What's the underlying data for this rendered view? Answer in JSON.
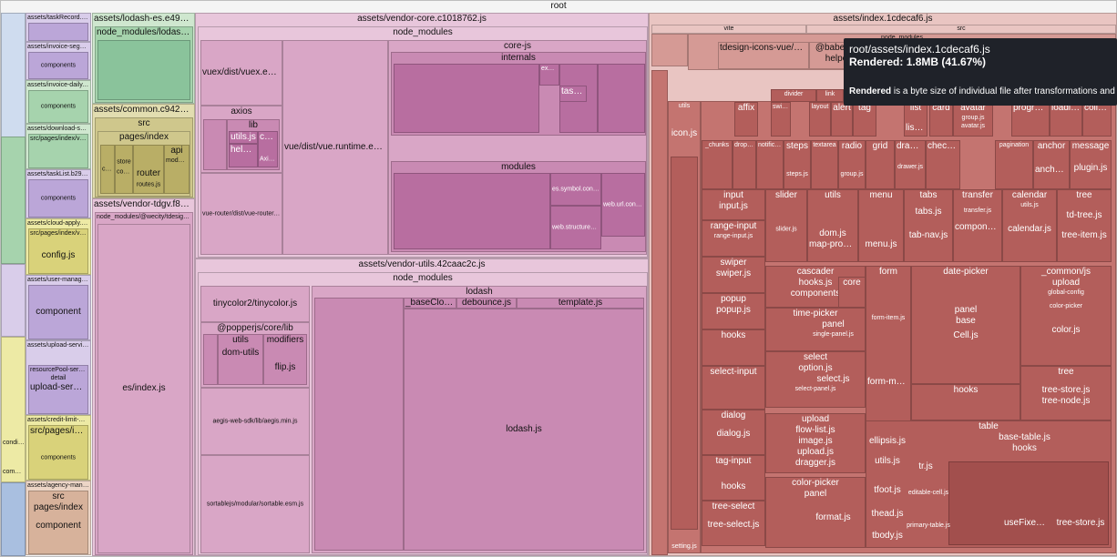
{
  "root": {
    "label": "root"
  },
  "left_sidebar": {
    "col1": [
      "assets/taskRecord.eb09e53f.js",
      "assets/invoice-segment.def9739a.js",
      "components",
      "assets/invoice-daily.6b5a3ed0.js",
      "components",
      "assets/download-service.09be817c.js",
      "src/pages/index/views",
      "assets/taskList.b299abed.js",
      "components",
      "assets/cloud-apply.acfef62d.js",
      "src/pages/index/views/cloud-apply",
      "config.js",
      "assets/user-manage.d629e7.js",
      "component",
      "assets/upload-service.7a613962.js",
      "resourcePool-service",
      "detail",
      "upload-service",
      "assets/credit-limit-manage.e8187e7.js",
      "src/pages/index",
      "components",
      "assets/agency-manage.09be951f.js",
      "src",
      "pages/index",
      "component",
      "condition.js",
      "components"
    ]
  },
  "lodash_es": {
    "title": "assets/lodash-es.e492349e.js",
    "sub": "node_modules/lodash-es"
  },
  "common": {
    "title": "assets/common.c942e9b4.js",
    "src": "src",
    "pages": "pages/index",
    "core": "core",
    "store": "store",
    "config": "config",
    "api": "api",
    "modules": "modules",
    "router": "router",
    "routes": "routes.js"
  },
  "vendor_tdgv": {
    "title": "assets/vendor-tdgv.f8baf6bb.js",
    "sub": "node_modules/@wecity/tdesign-gov-vue",
    "es": "es/index.js"
  },
  "vendor_core": {
    "title": "assets/vendor-core.c1018762.js",
    "node_modules": "node_modules",
    "vuex": "vuex/dist/vuex.esm.js",
    "axios": "axios",
    "lib": "lib",
    "utils_js": "utils.js",
    "core": "core",
    "helpers": "helpers",
    "axios_js": "Axios.js",
    "vue_runtime": "vue/dist/vue.runtime.esm.js",
    "vue_router": "vue-router/dist/vue-router.esm.js",
    "core_js": "core-js",
    "internals": "internals",
    "export_js": "export.js",
    "task_js": "task.js",
    "modules": "modules",
    "es_symbol": "es.symbol.constructor.js",
    "web_url": "web.url.constructor.js",
    "web_structured": "web.structured-clone.js"
  },
  "vendor_utils": {
    "title": "assets/vendor-utils.42caac2c.js",
    "node_modules": "node_modules",
    "tinycolor": "tinycolor2/tinycolor.js",
    "popper": "@popperjs/core/lib",
    "utils": "utils",
    "modifiers": "modifiers",
    "dom_utils": "dom-utils",
    "flip": "flip.js",
    "aegis": "aegis-web-sdk/lib/aegis.min.js",
    "sortable": "sortablejs/modular/sortable.esm.js",
    "lodash": "lodash",
    "baseClone": "_baseClone.js",
    "debounce": "debounce.js",
    "template": "template.js",
    "lodash_js": "lodash.js"
  },
  "index": {
    "title": "assets/index.1cdecaf6.js",
    "vite": "vite",
    "src": "src",
    "node_modules": "node_modules",
    "tdesign_icons": "tdesign-icons-vue/esm",
    "babel": "@babel/ru",
    "helpers": "helpe",
    "icon_js": "icon.js",
    "utils": "utils",
    "cells": [
      [
        "affix",
        "switch",
        "layout",
        "alert",
        "tag",
        "list",
        "card",
        "avatar",
        "progress",
        "loading",
        "collapse"
      ],
      [
        "dropdown",
        "notification",
        "steps",
        "textarea",
        "radio",
        "grid",
        "drawer",
        "checkbox",
        "pagination",
        "anchor",
        "message"
      ]
    ],
    "labels": {
      "divider": "divider",
      "link": "link",
      "list_js": "list.js",
      "group_js": "group.js",
      "avatar_js": "avatar.js",
      "chunks": "_chunks",
      "steps_js": "steps.js",
      "group2_js": "group.js",
      "drawer_js": "drawer.js",
      "plugin_js": "plugin.js",
      "anchor_js": "anchor.js",
      "input": "input",
      "input_js": "input.js",
      "slider": "slider",
      "slider_js": "slider.js",
      "utils": "utils",
      "dom_js": "dom.js",
      "map_props": "map-props.js",
      "menu": "menu",
      "menu_js": "menu.js",
      "tabs": "tabs",
      "tabs_js": "tabs.js",
      "tab_nav": "tab-nav.js",
      "transfer": "transfer",
      "transfer_js": "transfer.js",
      "components": "components",
      "calendar": "calendar",
      "calendar_js": "calendar.js",
      "utils_js": "utils.js",
      "tree": "tree",
      "td_tree": "td-tree.js",
      "tree_item": "tree-item.js",
      "range_input": "range-input",
      "range_input_js": "range-input.js",
      "swiper": "swiper",
      "swiper_js": "swiper.js",
      "popup": "popup",
      "popup_js": "popup.js",
      "cascader": "cascader",
      "hooks_js": "hooks.js",
      "core": "core",
      "time_picker": "time-picker",
      "panel": "panel",
      "single_panel": "single-panel.js",
      "form": "form",
      "form_item": "form-item.js",
      "form_model": "form-model.js",
      "date_picker": "date-picker",
      "base": "base",
      "cell_js": "Cell.js",
      "common_js": "_common/js",
      "utils2": "utils",
      "upload": "upload",
      "global_config": "global-config",
      "color_picker": "color-picker",
      "color_js": "color.js",
      "tree_store": "tree-store.js",
      "tree_node": "tree-node.js",
      "hooks": "hooks",
      "select": "select",
      "option_js": "option.js",
      "select_js": "select.js",
      "select_input": "select-input",
      "select_panel": "select-panel.js",
      "dialog": "dialog",
      "dialog_js": "dialog.js",
      "image_js": "image.js",
      "dragger_js": "dragger.js",
      "flow_list": "flow-list.js",
      "upload_js": "upload.js",
      "tag_input": "tag-input",
      "tree_select": "tree-select",
      "tree_select_js": "tree-select.js",
      "color_picker2": "color-picker",
      "panel2": "panel",
      "format_js": "format.js",
      "table": "table",
      "base_table": "base-table.js",
      "hooks2": "hooks",
      "ellipsis_js": "ellipsis.js",
      "utils_js2": "utils.js",
      "tr_js": "tr.js",
      "tfoot_js": "tfoot.js",
      "editable_cell": "editable-cell.js",
      "thead_js": "thead.js",
      "tbody_js": "tbody.js",
      "primary_table": "primary-table.js",
      "use_fixed": "useFixed.js",
      "tree_store2": "tree-store.js",
      "setting_js": "setting.js"
    }
  },
  "tooltip": {
    "path": "root/assets/index.1cdecaf6.js",
    "rendered_label": "Rendered:",
    "rendered_value": "1.8MB (41.67%)",
    "note_bold": "Rendered",
    "note_rest": " is a byte size of individual file after transformations and treeshaking."
  },
  "colors": {
    "tooltip_bg": "#1f2229",
    "pink": "#c98ab3",
    "red": "#b35e5b"
  }
}
